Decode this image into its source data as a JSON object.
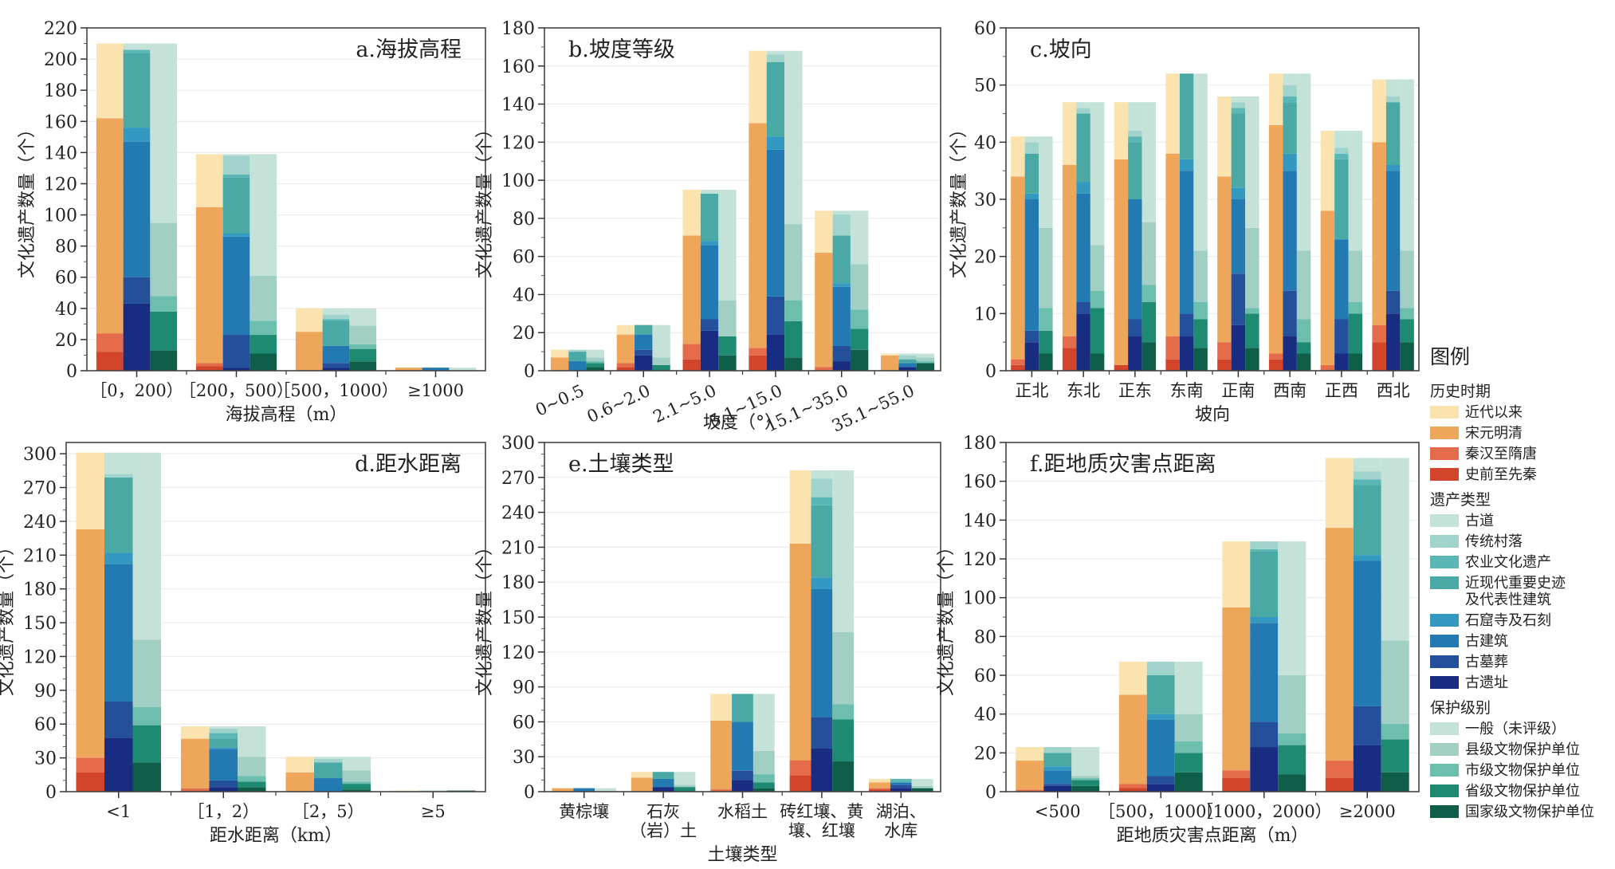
{
  "legend": {
    "title": "图例",
    "groups": [
      {
        "title": "历史时期",
        "items": [
          {
            "label": "近代以来",
            "color": "#fbe3b0"
          },
          {
            "label": "宋元明清",
            "color": "#eea65a"
          },
          {
            "label": "秦汉至隋唐",
            "color": "#e46c4a"
          },
          {
            "label": "史前至先秦",
            "color": "#d2452a"
          }
        ]
      },
      {
        "title": "遗产类型",
        "items": [
          {
            "label": "古道",
            "color": "#c3e3d9"
          },
          {
            "label": "传统村落",
            "color": "#9fd3cc"
          },
          {
            "label": "农业文化遗产",
            "color": "#5ab7b5"
          },
          {
            "label": "近现代重要史迹\n及代表性建筑",
            "color": "#4aa8a5"
          },
          {
            "label": "石窟寺及石刻",
            "color": "#3399c1"
          },
          {
            "label": "古建筑",
            "color": "#2379b1"
          },
          {
            "label": "古墓葬",
            "color": "#244f9b"
          },
          {
            "label": "古遗址",
            "color": "#182d82"
          }
        ]
      },
      {
        "title": "保护级别",
        "items": [
          {
            "label": "一般（未评级）",
            "color": "#c4e2d8"
          },
          {
            "label": "县级文物保护单位",
            "color": "#a1cfc4"
          },
          {
            "label": "市级文物保护单位",
            "color": "#6dbfad"
          },
          {
            "label": "省级文物保护单位",
            "color": "#1f8a72"
          },
          {
            "label": "国家级文物保护单位",
            "color": "#0e5e4a"
          }
        ]
      }
    ]
  },
  "stack_order_bottom_to_top": {
    "period": [
      "史前至先秦",
      "秦汉至隋唐",
      "宋元明清",
      "近代以来"
    ],
    "type": [
      "古遗址",
      "古墓葬",
      "古建筑",
      "石窟寺及石刻",
      "近现代重要史迹及代表性建筑",
      "农业文化遗产",
      "传统村落",
      "古道"
    ],
    "level": [
      "国家级文物保护单位",
      "省级文物保护单位",
      "市级文物保护单位",
      "县级文物保护单位",
      "一般（未评级）"
    ]
  },
  "colors_bottom_to_top": {
    "period": [
      "#d2452a",
      "#e46c4a",
      "#eea65a",
      "#fbe3b0"
    ],
    "type": [
      "#182d82",
      "#244f9b",
      "#2379b1",
      "#3399c1",
      "#4aa8a5",
      "#5ab7b5",
      "#9fd3cc",
      "#c3e3d9"
    ],
    "level": [
      "#0e5e4a",
      "#1f8a72",
      "#6dbfad",
      "#a1cfc4",
      "#c4e2d8"
    ]
  },
  "chart_data": [
    {
      "type": "bar",
      "stacked": true,
      "title": "a.海拔高程",
      "title_position": "top-right",
      "xlabel": "海拔高程（m）",
      "ylabel": "文化遗产数量（个）",
      "ylim": [
        0,
        220
      ],
      "yticks": [
        0,
        20,
        40,
        60,
        80,
        100,
        120,
        140,
        160,
        180,
        200,
        220
      ],
      "grid": true,
      "categories": [
        "［0，200）",
        "［200，500）",
        "［500，1000）",
        "≥1000"
      ],
      "series": {
        "period": [
          [
            12,
            12,
            138,
            48
          ],
          [
            3,
            2,
            100,
            34
          ],
          [
            0,
            0,
            25,
            15
          ],
          [
            0,
            0,
            2,
            0
          ]
        ],
        "type": [
          [
            43,
            17,
            87,
            9,
            48,
            2,
            0,
            4
          ],
          [
            2,
            21,
            63,
            2,
            36,
            2,
            12,
            1
          ],
          [
            2,
            3,
            11,
            0,
            16,
            1,
            3,
            4
          ],
          [
            0,
            0,
            2,
            0,
            0,
            0,
            0,
            0
          ]
        ],
        "level": [
          [
            13,
            25,
            10,
            47,
            115
          ],
          [
            11,
            12,
            9,
            29,
            78
          ],
          [
            6,
            8,
            3,
            12,
            11
          ],
          [
            0,
            0,
            0,
            0,
            2
          ]
        ]
      },
      "totals": [
        210,
        139,
        40,
        2
      ]
    },
    {
      "type": "bar",
      "stacked": true,
      "title": "b.坡度等级",
      "title_position": "top-left",
      "xlabel": "坡度（°）",
      "ylabel": "文化遗产数量（个）",
      "ylim": [
        0,
        180
      ],
      "yticks": [
        0,
        20,
        40,
        60,
        80,
        100,
        120,
        140,
        160,
        180
      ],
      "grid": true,
      "rotate_xticks": true,
      "categories": [
        "0~0.5",
        "0.6~2.0",
        "2.1~5.0",
        "5.1~15.0",
        "15.1~35.0",
        "35.1~55.0"
      ],
      "series": {
        "period": [
          [
            0,
            0,
            7,
            4
          ],
          [
            2,
            2,
            15,
            5
          ],
          [
            6,
            8,
            57,
            24
          ],
          [
            8,
            4,
            118,
            38
          ],
          [
            0,
            2,
            60,
            22
          ],
          [
            0,
            0,
            8,
            1
          ]
        ],
        "type": [
          [
            0,
            0,
            5,
            0,
            5,
            0,
            1,
            0
          ],
          [
            8,
            3,
            8,
            0,
            5,
            0,
            0,
            0
          ],
          [
            21,
            6,
            39,
            2,
            25,
            0,
            0,
            2
          ],
          [
            19,
            20,
            77,
            7,
            39,
            0,
            4,
            2
          ],
          [
            5,
            8,
            31,
            2,
            25,
            0,
            11,
            2
          ],
          [
            2,
            0,
            2,
            0,
            2,
            0,
            2,
            1
          ]
        ],
        "level": [
          [
            2,
            2,
            1,
            2,
            4
          ],
          [
            0,
            3,
            0,
            4,
            17
          ],
          [
            8,
            10,
            0,
            19,
            58
          ],
          [
            7,
            19,
            11,
            40,
            91
          ],
          [
            11,
            11,
            10,
            24,
            28
          ],
          [
            4,
            0,
            1,
            2,
            2
          ]
        ]
      },
      "totals": [
        11,
        24,
        95,
        168,
        84,
        9
      ]
    },
    {
      "type": "bar",
      "stacked": true,
      "title": "c.坡向",
      "title_position": "top-left",
      "xlabel": "坡向",
      "ylabel": "文化遗产数量（个）",
      "ylim": [
        0,
        60
      ],
      "yticks": [
        0,
        10,
        20,
        30,
        40,
        50,
        60
      ],
      "grid": true,
      "categories": [
        "正北",
        "东北",
        "正东",
        "东南",
        "正南",
        "西南",
        "正西",
        "西北"
      ],
      "series": {
        "period": [
          [
            1,
            1,
            32,
            7
          ],
          [
            4,
            2,
            30,
            11
          ],
          [
            1,
            0,
            36,
            10
          ],
          [
            2,
            4,
            32,
            14
          ],
          [
            2,
            3,
            29,
            14
          ],
          [
            2,
            1,
            40,
            9
          ],
          [
            0,
            1,
            27,
            14
          ],
          [
            5,
            3,
            32,
            11
          ]
        ],
        "type": [
          [
            5,
            2,
            23,
            1,
            7,
            0,
            2,
            1
          ],
          [
            10,
            2,
            19,
            2,
            12,
            0,
            1,
            1
          ],
          [
            6,
            3,
            21,
            0,
            10,
            1,
            1,
            5
          ],
          [
            6,
            4,
            25,
            2,
            15,
            0,
            0,
            0
          ],
          [
            8,
            9,
            13,
            2,
            13,
            1,
            1,
            1
          ],
          [
            6,
            8,
            21,
            3,
            9,
            1,
            2,
            2
          ],
          [
            3,
            6,
            14,
            0,
            14,
            1,
            1,
            3
          ],
          [
            10,
            4,
            21,
            1,
            11,
            0,
            1,
            3
          ]
        ],
        "level": [
          [
            3,
            4,
            4,
            14,
            16
          ],
          [
            3,
            8,
            3,
            8,
            25
          ],
          [
            5,
            7,
            3,
            11,
            21
          ],
          [
            4,
            5,
            3,
            9,
            31
          ],
          [
            4,
            6,
            1,
            14,
            23
          ],
          [
            3,
            2,
            4,
            12,
            31
          ],
          [
            3,
            7,
            2,
            9,
            21
          ],
          [
            5,
            4,
            2,
            10,
            30
          ]
        ]
      },
      "totals": [
        41,
        47,
        47,
        52,
        48,
        52,
        42,
        51
      ]
    },
    {
      "type": "bar",
      "stacked": true,
      "title": "d.距水距离",
      "title_position": "top-right",
      "xlabel": "距水距离（km）",
      "ylabel": "文化遗产数量（个）",
      "ylim": [
        0,
        310
      ],
      "yticks": [
        0,
        30,
        60,
        90,
        120,
        150,
        180,
        210,
        240,
        270,
        300
      ],
      "grid": true,
      "categories": [
        "<1",
        "［1，2）",
        "［2，5）",
        "≥5"
      ],
      "series": {
        "period": [
          [
            17,
            13,
            203,
            68
          ],
          [
            1,
            2,
            44,
            11
          ],
          [
            0,
            0,
            17,
            14
          ],
          [
            0,
            0,
            0,
            1
          ]
        ],
        "type": [
          [
            48,
            32,
            122,
            10,
            67,
            0,
            3,
            19
          ],
          [
            4,
            6,
            28,
            1,
            8,
            5,
            4,
            2
          ],
          [
            0,
            0,
            12,
            0,
            14,
            0,
            3,
            2
          ],
          [
            0,
            0,
            0,
            0,
            0,
            0,
            1,
            0
          ]
        ],
        "level": [
          [
            26,
            33,
            16,
            60,
            166
          ],
          [
            4,
            5,
            5,
            17,
            27
          ],
          [
            2,
            5,
            2,
            10,
            12
          ],
          [
            1,
            0,
            0,
            0,
            0
          ]
        ]
      },
      "totals": [
        301,
        58,
        31,
        1
      ]
    },
    {
      "type": "bar",
      "stacked": true,
      "title": "e.土壤类型",
      "title_position": "top-left",
      "xlabel": "土壤类型",
      "ylabel": "文化遗产数量（个）",
      "ylim": [
        0,
        300
      ],
      "yticks": [
        0,
        30,
        60,
        90,
        120,
        150,
        180,
        210,
        240,
        270,
        300
      ],
      "grid": true,
      "categories": [
        "黄棕壤",
        "石灰\n（岩）土",
        "水稻土",
        "砖红壤、黄\n壤、红壤",
        "湖泊、\n水库"
      ],
      "series": {
        "period": [
          [
            0,
            0,
            3,
            0
          ],
          [
            0,
            0,
            12,
            5
          ],
          [
            0,
            2,
            59,
            23
          ],
          [
            14,
            13,
            186,
            63
          ],
          [
            2,
            1,
            5,
            3
          ]
        ],
        "type": [
          [
            0,
            0,
            3,
            0,
            0,
            0,
            0,
            0
          ],
          [
            4,
            0,
            7,
            0,
            6,
            0,
            0,
            0
          ],
          [
            10,
            8,
            42,
            0,
            24,
            0,
            0,
            0
          ],
          [
            37,
            27,
            110,
            10,
            62,
            7,
            16,
            7
          ],
          [
            3,
            3,
            2,
            0,
            0,
            3,
            0,
            0
          ]
        ],
        "level": [
          [
            0,
            0,
            0,
            0,
            3
          ],
          [
            0,
            4,
            0,
            2,
            11
          ],
          [
            3,
            5,
            7,
            20,
            49
          ],
          [
            26,
            36,
            13,
            62,
            139
          ],
          [
            3,
            0,
            0,
            2,
            6
          ]
        ]
      },
      "totals": [
        3,
        17,
        84,
        276,
        11
      ]
    },
    {
      "type": "bar",
      "stacked": true,
      "title": "f.距地质灾害点距离",
      "title_position": "top-left",
      "xlabel": "距地质灾害点距离（m）",
      "ylabel": "文化遗产数量（个）",
      "ylim": [
        0,
        180
      ],
      "yticks": [
        0,
        20,
        40,
        60,
        80,
        100,
        120,
        140,
        160,
        180
      ],
      "grid": true,
      "categories": [
        "<500",
        "［500，1000）",
        "［1000，2000）",
        "≥2000"
      ],
      "series": {
        "period": [
          [
            0,
            1,
            15,
            7
          ],
          [
            2,
            2,
            46,
            17
          ],
          [
            7,
            4,
            84,
            34
          ],
          [
            7,
            9,
            120,
            36
          ]
        ],
        "type": [
          [
            3,
            1,
            7,
            2,
            7,
            0,
            3,
            0
          ],
          [
            4,
            4,
            29,
            3,
            20,
            0,
            7,
            0
          ],
          [
            23,
            13,
            51,
            3,
            34,
            1,
            4,
            0
          ],
          [
            24,
            20,
            75,
            3,
            36,
            3,
            4,
            7
          ]
        ],
        "level": [
          [
            3,
            3,
            1,
            1,
            15
          ],
          [
            10,
            10,
            6,
            14,
            27
          ],
          [
            9,
            15,
            6,
            30,
            69
          ],
          [
            10,
            17,
            8,
            43,
            94
          ]
        ]
      },
      "totals": [
        23,
        67,
        129,
        172
      ]
    }
  ]
}
